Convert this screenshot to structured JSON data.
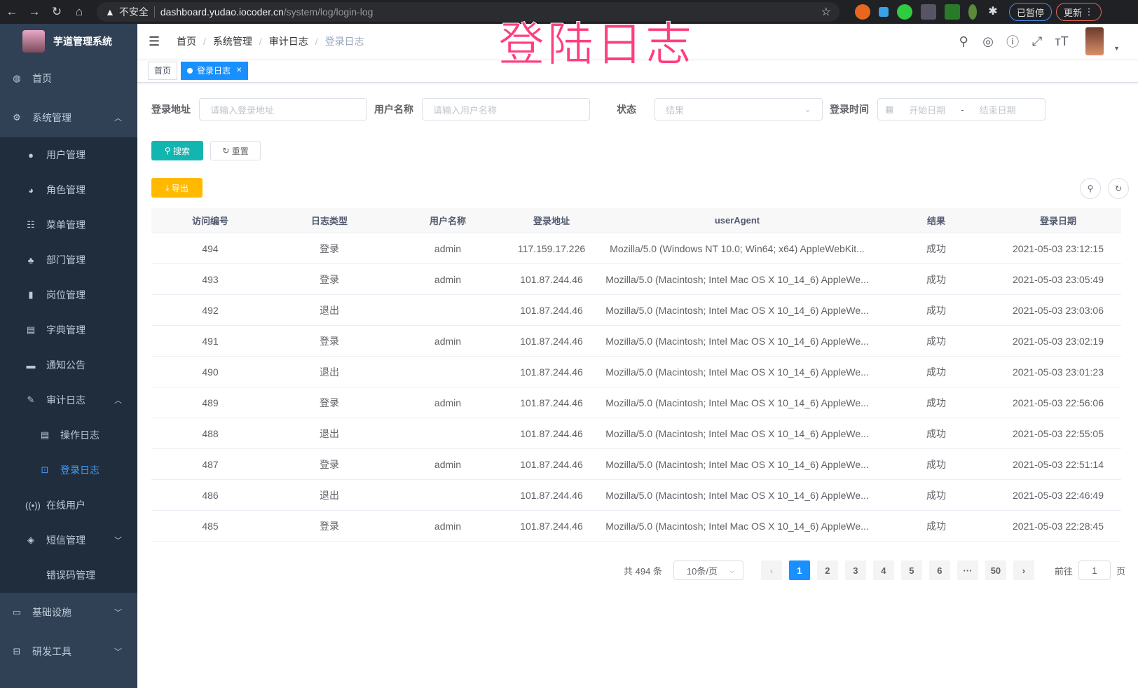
{
  "browser": {
    "warning": "不安全",
    "host": "dashboard.yudao.iocoder.cn",
    "path": "/system/log/login-log",
    "paused": "已暂停",
    "update": "更新"
  },
  "overlay_title": "登陆日志",
  "sidebar": {
    "title": "芋道管理系统",
    "items": [
      {
        "label": "首页",
        "icon": "dashboard-icon",
        "level": 0
      },
      {
        "label": "系统管理",
        "icon": "gear-icon",
        "level": 0,
        "arrow": "up"
      },
      {
        "label": "用户管理",
        "icon": "user-icon",
        "level": 1
      },
      {
        "label": "角色管理",
        "icon": "peoples-icon",
        "level": 1
      },
      {
        "label": "菜单管理",
        "icon": "tree-table-icon",
        "level": 1
      },
      {
        "label": "部门管理",
        "icon": "tree-icon",
        "level": 1
      },
      {
        "label": "岗位管理",
        "icon": "post-icon",
        "level": 1
      },
      {
        "label": "字典管理",
        "icon": "dict-icon",
        "level": 1
      },
      {
        "label": "通知公告",
        "icon": "message-icon",
        "level": 1
      },
      {
        "label": "审计日志",
        "icon": "log-icon",
        "level": 1,
        "arrow": "up"
      },
      {
        "label": "操作日志",
        "icon": "form-icon",
        "level": 2
      },
      {
        "label": "登录日志",
        "icon": "logininfor-icon",
        "level": 2,
        "active": true
      },
      {
        "label": "在线用户",
        "icon": "online-icon",
        "level": 1
      },
      {
        "label": "短信管理",
        "icon": "validcode-icon",
        "level": 1,
        "arrow": "down"
      },
      {
        "label": "错误码管理",
        "icon": "code-icon",
        "level": 1
      },
      {
        "label": "基础设施",
        "icon": "monitor-icon",
        "level": 0,
        "arrow": "down"
      },
      {
        "label": "研发工具",
        "icon": "tool-icon",
        "level": 0,
        "arrow": "down"
      }
    ]
  },
  "breadcrumb": [
    "首页",
    "系统管理",
    "审计日志",
    "登录日志"
  ],
  "tags": [
    {
      "label": "首页"
    },
    {
      "label": "登录日志"
    }
  ],
  "filters": {
    "address_label": "登录地址",
    "address_placeholder": "请输入登录地址",
    "username_label": "用户名称",
    "username_placeholder": "请输入用户名称",
    "status_label": "状态",
    "status_placeholder": "结果",
    "time_label": "登录时间",
    "start_placeholder": "开始日期",
    "range_sep": "-",
    "end_placeholder": "结束日期"
  },
  "buttons": {
    "search": "搜索",
    "reset": "重置",
    "export": "导出"
  },
  "colors": {
    "sidebar": "#304156",
    "accent": "#1890ff",
    "search": "#13b5b1",
    "export": "#ffba00"
  },
  "table": {
    "columns": [
      "访问编号",
      "日志类型",
      "用户名称",
      "登录地址",
      "userAgent",
      "结果",
      "登录日期"
    ],
    "rows": [
      [
        "494",
        "登录",
        "admin",
        "117.159.17.226",
        "Mozilla/5.0 (Windows NT 10.0; Win64; x64) AppleWebKit...",
        "成功",
        "2021-05-03 23:12:15"
      ],
      [
        "493",
        "登录",
        "admin",
        "101.87.244.46",
        "Mozilla/5.0 (Macintosh; Intel Mac OS X 10_14_6) AppleWe...",
        "成功",
        "2021-05-03 23:05:49"
      ],
      [
        "492",
        "退出",
        "",
        "101.87.244.46",
        "Mozilla/5.0 (Macintosh; Intel Mac OS X 10_14_6) AppleWe...",
        "成功",
        "2021-05-03 23:03:06"
      ],
      [
        "491",
        "登录",
        "admin",
        "101.87.244.46",
        "Mozilla/5.0 (Macintosh; Intel Mac OS X 10_14_6) AppleWe...",
        "成功",
        "2021-05-03 23:02:19"
      ],
      [
        "490",
        "退出",
        "",
        "101.87.244.46",
        "Mozilla/5.0 (Macintosh; Intel Mac OS X 10_14_6) AppleWe...",
        "成功",
        "2021-05-03 23:01:23"
      ],
      [
        "489",
        "登录",
        "admin",
        "101.87.244.46",
        "Mozilla/5.0 (Macintosh; Intel Mac OS X 10_14_6) AppleWe...",
        "成功",
        "2021-05-03 22:56:06"
      ],
      [
        "488",
        "退出",
        "",
        "101.87.244.46",
        "Mozilla/5.0 (Macintosh; Intel Mac OS X 10_14_6) AppleWe...",
        "成功",
        "2021-05-03 22:55:05"
      ],
      [
        "487",
        "登录",
        "admin",
        "101.87.244.46",
        "Mozilla/5.0 (Macintosh; Intel Mac OS X 10_14_6) AppleWe...",
        "成功",
        "2021-05-03 22:51:14"
      ],
      [
        "486",
        "退出",
        "",
        "101.87.244.46",
        "Mozilla/5.0 (Macintosh; Intel Mac OS X 10_14_6) AppleWe...",
        "成功",
        "2021-05-03 22:46:49"
      ],
      [
        "485",
        "登录",
        "admin",
        "101.87.244.46",
        "Mozilla/5.0 (Macintosh; Intel Mac OS X 10_14_6) AppleWe...",
        "成功",
        "2021-05-03 22:28:45"
      ]
    ]
  },
  "pagination": {
    "total": "共 494 条",
    "page_size": "10条/页",
    "pages": [
      "1",
      "2",
      "3",
      "4",
      "5",
      "6",
      "···",
      "50"
    ],
    "current": "1",
    "goto_label": "前往",
    "goto_value": "1",
    "page_suffix": "页"
  }
}
